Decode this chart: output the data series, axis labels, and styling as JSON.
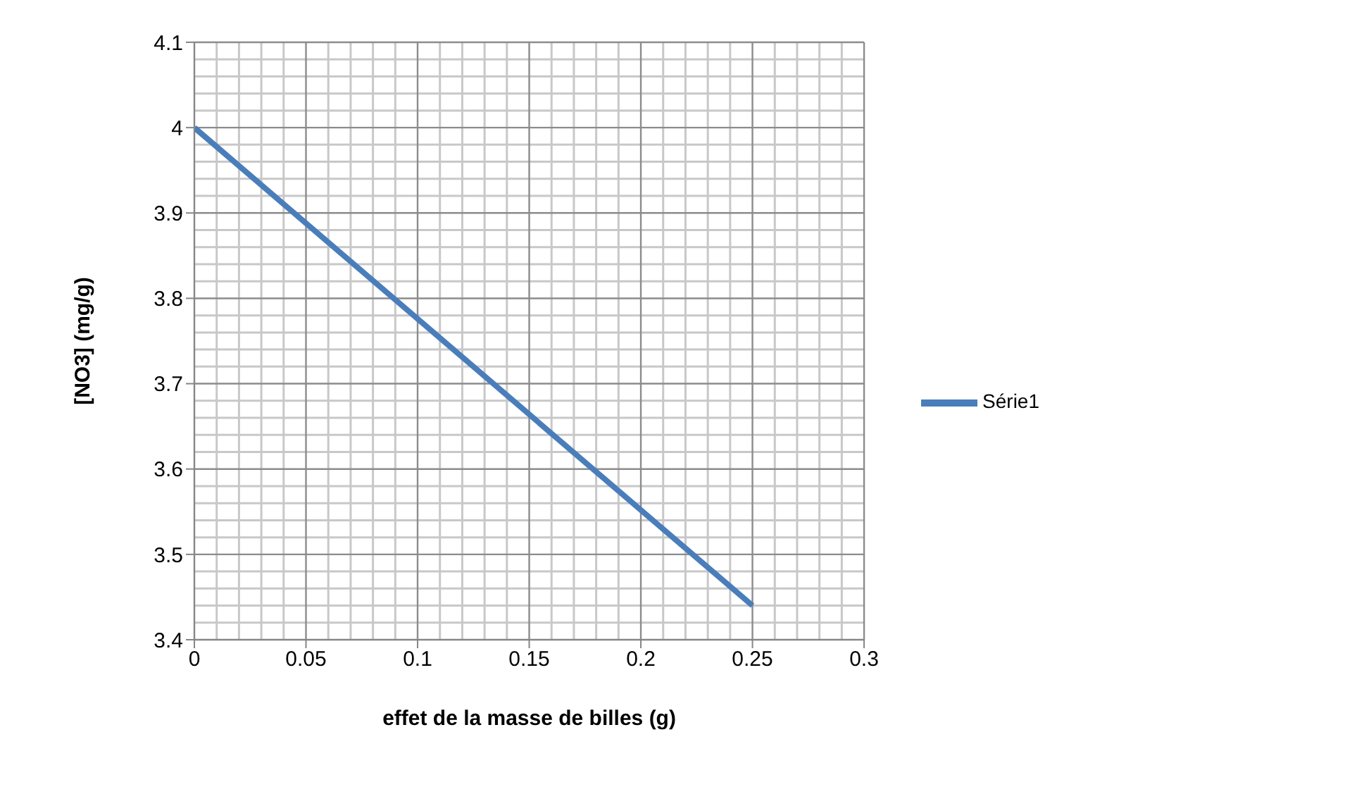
{
  "chart_data": {
    "type": "line",
    "xlabel": "effet de la masse de billes (g)",
    "ylabel": "[NO3] (mg/g)",
    "x": [
      0,
      0.25
    ],
    "series": [
      {
        "name": "Série1",
        "color": "#4a7ebb",
        "values": [
          4,
          3.44
        ]
      }
    ],
    "xlim": [
      0,
      0.3
    ],
    "xticks": [
      0,
      0.05,
      0.1,
      0.15,
      0.2,
      0.25,
      0.3
    ],
    "ylim": [
      3.4,
      4.1
    ],
    "yticks": [
      3.4,
      3.5,
      3.6,
      3.7,
      3.8,
      3.9,
      4,
      4.1
    ],
    "grid": true,
    "legend": "right",
    "marker": "none",
    "line_style": "solid"
  }
}
